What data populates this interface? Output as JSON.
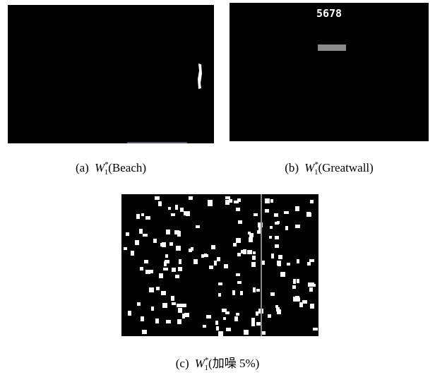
{
  "figures": [
    {
      "label": "(a)",
      "symbol": "W",
      "sub": "1",
      "sup": "*",
      "name": "(Beach)"
    },
    {
      "label": "(b)",
      "symbol": "W",
      "sub": "1",
      "sup": "*",
      "name": "(Greatwall)",
      "image_text": "5678"
    },
    {
      "label": "(c)",
      "symbol": "W",
      "sub": "1",
      "sup": "*",
      "name": "(加噪 5%)"
    }
  ]
}
